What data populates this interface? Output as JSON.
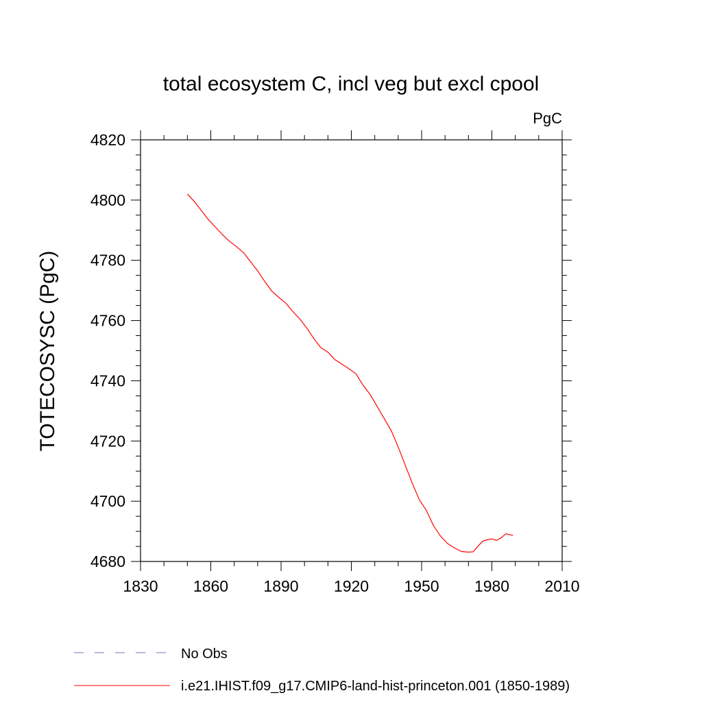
{
  "chart_data": {
    "type": "line",
    "title": "total ecosystem C, incl veg but excl cpool",
    "units_label": "PgC",
    "ylabel": "TOTECOSYSC  (PgC)",
    "xlabel": "",
    "xlim": [
      1830,
      2010
    ],
    "ylim": [
      4680,
      4820
    ],
    "x_ticks": [
      "1830",
      "1860",
      "1890",
      "1920",
      "1950",
      "1980",
      "2010"
    ],
    "y_ticks": [
      "4680",
      "4700",
      "4720",
      "4740",
      "4760",
      "4780",
      "4800",
      "4820"
    ],
    "x_minor_step": 10,
    "y_minor_step": 5,
    "legend_position": "bottom",
    "series": [
      {
        "name": "No Obs",
        "color": "#7b6fb0",
        "dash": "dashed",
        "x": [],
        "y": []
      },
      {
        "name": "i.e21.IHIST.f09_g17.CMIP6-land-hist-princeton.001 (1850-1989)",
        "color": "#ff0000",
        "dash": "solid",
        "x": [
          1850,
          1853,
          1856,
          1859,
          1862,
          1865,
          1868,
          1871,
          1874,
          1877,
          1880,
          1883,
          1886,
          1889,
          1892,
          1895,
          1898,
          1901,
          1904,
          1907,
          1910,
          1913,
          1916,
          1919,
          1922,
          1925,
          1928,
          1931,
          1934,
          1937,
          1940,
          1943,
          1946,
          1949,
          1952,
          1955,
          1958,
          1961,
          1964,
          1967,
          1970,
          1972,
          1974,
          1976,
          1978,
          1980,
          1982,
          1984,
          1986,
          1988,
          1989
        ],
        "y": [
          4802,
          4799.5,
          4796.5,
          4793.5,
          4791,
          4788.5,
          4786.3,
          4784.5,
          4782.5,
          4779.5,
          4776.5,
          4773,
          4769.8,
          4767.7,
          4765.8,
          4763,
          4760.5,
          4757.5,
          4754,
          4751,
          4749.5,
          4747,
          4745.5,
          4744,
          4742.3,
          4738.5,
          4735.5,
          4731.5,
          4727.5,
          4723.5,
          4718,
          4712,
          4706,
          4700.5,
          4697,
          4692,
          4688.5,
          4686,
          4684.5,
          4683.3,
          4683.1,
          4683.2,
          4685,
          4686.7,
          4687.2,
          4687.5,
          4687,
          4687.9,
          4689.2,
          4688.8,
          4688.7
        ]
      }
    ]
  }
}
